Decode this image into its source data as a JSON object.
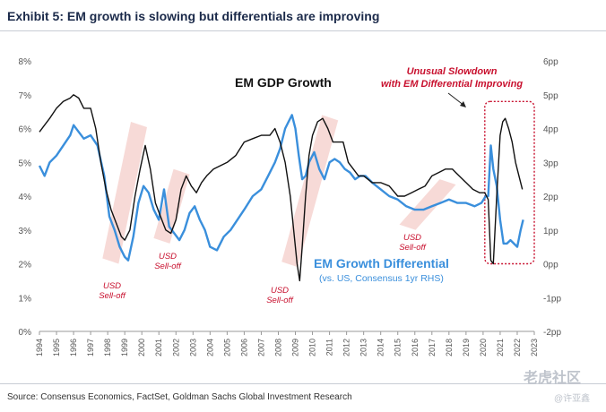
{
  "header": {
    "title": "Exhibit 5: EM growth is slowing but differentials are improving",
    "source": "Source: Consensus Economics, FactSet, Goldman Sachs Global Investment Research",
    "watermark": "老虎社区",
    "watermark_user": "@许亚鑫"
  },
  "colors": {
    "gdp": "#111111",
    "diff": "#3a8fdc",
    "band": "#f6d3d0",
    "annotation": "#c8102e",
    "box": "#c8102e"
  },
  "chart_data": {
    "type": "line",
    "title": "Exhibit 5: EM growth is slowing but differentials are improving",
    "xlabel": "",
    "ylabel": "",
    "x_range": [
      1994,
      2023
    ],
    "ylim_left": [
      0,
      8
    ],
    "ylim_right": [
      -2,
      6
    ],
    "grid": false,
    "x_tick_labels": [
      "1994",
      "1995",
      "1996",
      "1997",
      "1998",
      "1999",
      "2000",
      "2001",
      "2002",
      "2003",
      "2004",
      "2005",
      "2006",
      "2007",
      "2008",
      "2009",
      "2010",
      "2011",
      "2012",
      "2013",
      "2014",
      "2015",
      "2016",
      "2017",
      "2018",
      "2019",
      "2020",
      "2021",
      "2022",
      "2023"
    ],
    "y_tick_labels_left": [
      "0%",
      "1%",
      "2%",
      "3%",
      "4%",
      "5%",
      "6%",
      "7%",
      "8%"
    ],
    "y_tick_values_left": [
      0,
      1,
      2,
      3,
      4,
      5,
      6,
      7,
      8
    ],
    "y_tick_labels_right": [
      "-2pp",
      "-1pp",
      "0pp",
      "1pp",
      "2pp",
      "3pp",
      "4pp",
      "5pp",
      "6pp"
    ],
    "y_tick_values_right": [
      -2,
      -1,
      0,
      1,
      2,
      3,
      4,
      5,
      6
    ],
    "series": [
      {
        "name": "EM GDP Growth",
        "axis": "left",
        "x": [
          1994.0,
          1994.3,
          1994.6,
          1995.0,
          1995.4,
          1995.8,
          1996.0,
          1996.3,
          1996.6,
          1997.0,
          1997.3,
          1997.6,
          1997.9,
          1998.2,
          1998.5,
          1998.8,
          1999.0,
          1999.3,
          1999.6,
          1999.9,
          2000.2,
          2000.5,
          2000.8,
          2001.1,
          2001.4,
          2001.7,
          2002.0,
          2002.3,
          2002.6,
          2002.9,
          2003.2,
          2003.5,
          2003.8,
          2004.2,
          2004.6,
          2005.0,
          2005.5,
          2006.0,
          2006.5,
          2007.0,
          2007.5,
          2007.8,
          2008.1,
          2008.4,
          2008.7,
          2008.9,
          2009.1,
          2009.25,
          2009.4,
          2009.6,
          2009.8,
          2010.0,
          2010.3,
          2010.6,
          2010.9,
          2011.2,
          2011.5,
          2011.8,
          2012.1,
          2012.4,
          2012.7,
          2013.0,
          2013.5,
          2014.0,
          2014.5,
          2015.0,
          2015.4,
          2015.8,
          2016.2,
          2016.6,
          2017.0,
          2017.4,
          2017.8,
          2018.2,
          2018.6,
          2019.0,
          2019.4,
          2019.8,
          2020.1,
          2020.3,
          2020.45,
          2020.6,
          2020.8,
          2021.0,
          2021.15,
          2021.3,
          2021.5,
          2021.7,
          2021.9,
          2022.1,
          2022.3
        ],
        "values": [
          5.9,
          6.1,
          6.3,
          6.6,
          6.8,
          6.9,
          7.0,
          6.9,
          6.6,
          6.6,
          6.0,
          5.0,
          4.2,
          3.6,
          3.2,
          2.8,
          2.7,
          3.0,
          4.0,
          4.8,
          5.5,
          4.8,
          3.8,
          3.4,
          3.0,
          2.9,
          3.3,
          4.2,
          4.6,
          4.3,
          4.1,
          4.4,
          4.6,
          4.8,
          4.9,
          5.0,
          5.2,
          5.6,
          5.7,
          5.8,
          5.8,
          6.0,
          5.6,
          5.0,
          4.0,
          3.0,
          2.0,
          1.5,
          2.5,
          4.0,
          5.2,
          5.8,
          6.2,
          6.3,
          6.0,
          5.6,
          5.6,
          5.6,
          5.0,
          4.8,
          4.6,
          4.6,
          4.4,
          4.4,
          4.3,
          4.0,
          4.0,
          4.1,
          4.2,
          4.3,
          4.6,
          4.7,
          4.8,
          4.8,
          4.6,
          4.4,
          4.2,
          4.1,
          4.1,
          3.9,
          2.1,
          2.0,
          4.0,
          5.8,
          6.2,
          6.3,
          6.0,
          5.6,
          5.0,
          4.6,
          4.2
        ]
      },
      {
        "name": "EM Growth Differential",
        "subtitle": "(vs. US, Consensus 1yr RHS)",
        "axis": "right",
        "x": [
          1994.0,
          1994.3,
          1994.6,
          1995.0,
          1995.4,
          1995.8,
          1996.0,
          1996.3,
          1996.6,
          1997.0,
          1997.4,
          1997.8,
          1998.1,
          1998.4,
          1998.7,
          1999.0,
          1999.2,
          1999.5,
          1999.8,
          2000.1,
          2000.4,
          2000.7,
          2001.0,
          2001.3,
          2001.6,
          2001.9,
          2002.2,
          2002.5,
          2002.8,
          2003.1,
          2003.4,
          2003.7,
          2004.0,
          2004.4,
          2004.8,
          2005.2,
          2005.6,
          2006.0,
          2006.5,
          2007.0,
          2007.4,
          2007.8,
          2008.1,
          2008.4,
          2008.6,
          2008.8,
          2009.0,
          2009.2,
          2009.4,
          2009.6,
          2009.8,
          2010.1,
          2010.4,
          2010.7,
          2011.0,
          2011.3,
          2011.6,
          2011.9,
          2012.2,
          2012.5,
          2012.8,
          2013.1,
          2013.5,
          2014.0,
          2014.5,
          2015.0,
          2015.5,
          2016.0,
          2016.5,
          2017.0,
          2017.5,
          2018.0,
          2018.5,
          2019.0,
          2019.5,
          2019.9,
          2020.15,
          2020.3,
          2020.45,
          2020.6,
          2020.8,
          2021.0,
          2021.2,
          2021.4,
          2021.6,
          2021.8,
          2022.0,
          2022.2,
          2022.35
        ],
        "values": [
          2.9,
          2.6,
          3.0,
          3.2,
          3.5,
          3.8,
          4.1,
          3.9,
          3.7,
          3.8,
          3.5,
          2.6,
          1.4,
          1.0,
          0.5,
          0.2,
          0.1,
          0.8,
          1.8,
          2.3,
          2.1,
          1.6,
          1.3,
          2.2,
          1.1,
          0.9,
          0.7,
          1.0,
          1.5,
          1.7,
          1.3,
          1.0,
          0.5,
          0.4,
          0.8,
          1.0,
          1.3,
          1.6,
          2.0,
          2.2,
          2.6,
          3.0,
          3.4,
          4.0,
          4.2,
          4.4,
          4.0,
          3.2,
          2.5,
          2.6,
          3.0,
          3.3,
          2.8,
          2.5,
          3.0,
          3.1,
          3.0,
          2.8,
          2.7,
          2.5,
          2.6,
          2.6,
          2.4,
          2.2,
          2.0,
          1.9,
          1.7,
          1.6,
          1.6,
          1.7,
          1.8,
          1.9,
          1.8,
          1.8,
          1.7,
          1.8,
          2.0,
          2.0,
          3.5,
          2.8,
          2.3,
          1.3,
          0.6,
          0.6,
          0.7,
          0.6,
          0.5,
          1.0,
          1.3
        ]
      }
    ],
    "shaded_periods": [
      {
        "x0": 1997.8,
        "x1": 2000.2,
        "y_top": 6.2,
        "y_bot": 2.0
      },
      {
        "x0": 2000.8,
        "x1": 2002.7,
        "y_top": 4.8,
        "y_bot": 2.6
      },
      {
        "x0": 2008.3,
        "x1": 2011.4,
        "y_top": 6.4,
        "y_bot": 1.9
      },
      {
        "x0": 2015.2,
        "x1": 2018.3,
        "y_top": 4.5,
        "y_bot": 3.0
      }
    ],
    "highlight_box": {
      "x0": 2020.1,
      "x1": 2023.0,
      "y0_right": 0.0,
      "y1_right": 4.8
    },
    "annotations": {
      "gdp_label": "EM GDP Growth",
      "diff_label": "EM Growth Differential",
      "diff_sublabel": "(vs. US, Consensus 1yr RHS)",
      "usd_selloff_1": "USD Sell-off",
      "usd_selloff_2": "USD Sell-off",
      "usd_selloff_3": "USD Sell-off",
      "usd_selloff_4": "USD Sell-off",
      "unusual_line1": "Unusual Slowdown",
      "unusual_line2": "with EM Differential Improving"
    }
  }
}
